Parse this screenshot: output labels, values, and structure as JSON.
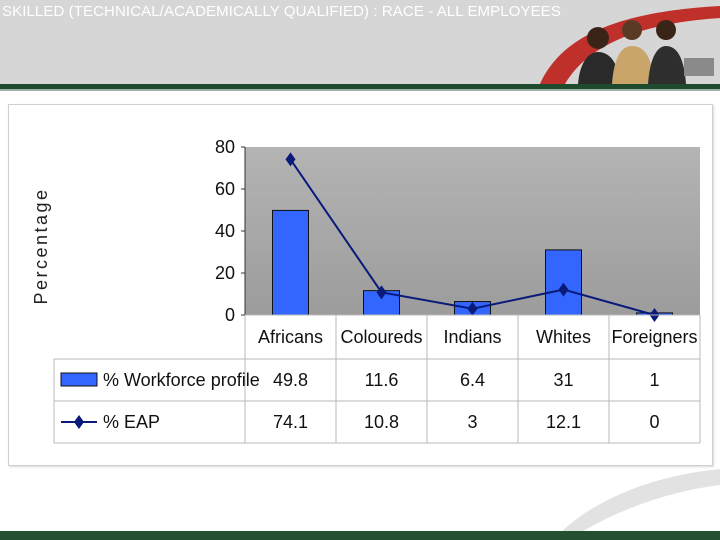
{
  "header": {
    "title": "SKILLED (TECHNICAL/ACADEMICALLY QUALIFIED) : RACE - ALL EMPLOYEES"
  },
  "colors": {
    "header_bg": "#d6d6d6",
    "plot_bg": "#a9a9a9",
    "bar_fill": "#3366ff",
    "line": "#0a1a7a",
    "accent_band": "#1e4a2e",
    "logo_red": "#c0302a"
  },
  "chart_data": {
    "type": "bar",
    "categories": [
      "Africans",
      "Coloureds",
      "Indians",
      "Whites",
      "Foreigners"
    ],
    "series": [
      {
        "name": "% Workforce profile",
        "type": "bar",
        "values": [
          49.8,
          11.6,
          6.4,
          31,
          1
        ]
      },
      {
        "name": "% EAP",
        "type": "line",
        "values": [
          74.1,
          10.8,
          3,
          12.1,
          0
        ]
      }
    ],
    "table_values": [
      [
        "49.8",
        "11.6",
        "6.4",
        "31",
        "1"
      ],
      [
        "74.1",
        "10.8",
        "3",
        "12.1",
        "0"
      ]
    ],
    "title": "",
    "xlabel": "",
    "ylabel": "Percentage",
    "ylim": [
      0,
      80
    ],
    "yticks": [
      "0",
      "20",
      "40",
      "60",
      "80"
    ],
    "grid": false,
    "legend_placement": "data-table"
  }
}
